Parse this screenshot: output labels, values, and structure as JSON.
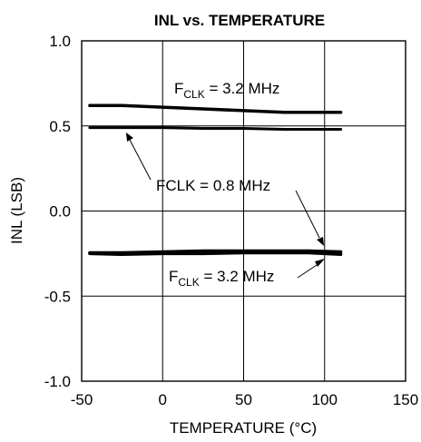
{
  "chart_data": {
    "type": "line",
    "title": "INL vs. TEMPERATURE",
    "xlabel": "TEMPERATURE (°C)",
    "ylabel": "INL (LSB)",
    "xlim": [
      -50,
      150
    ],
    "ylim": [
      -1.0,
      1.0
    ],
    "xticks": [
      -50,
      0,
      50,
      100,
      150
    ],
    "yticks": [
      1.0,
      0.5,
      0.0,
      -0.5,
      -1.0
    ],
    "xtick_labels": [
      "-50",
      "0",
      "50",
      "100",
      "150"
    ],
    "ytick_labels": [
      "1.0",
      "0.5",
      "0.0",
      "-0.5",
      "-1.0"
    ],
    "grid": true,
    "series": [
      {
        "x": [
          -45,
          -25,
          0,
          25,
          50,
          75,
          90,
          110
        ],
        "y": [
          0.62,
          0.62,
          0.61,
          0.6,
          0.59,
          0.58,
          0.58,
          0.58
        ],
        "width": 3.5
      },
      {
        "x": [
          -45,
          -25,
          0,
          25,
          50,
          75,
          90,
          110
        ],
        "y": [
          0.49,
          0.49,
          0.49,
          0.485,
          0.485,
          0.48,
          0.48,
          0.48
        ],
        "width": 3
      },
      {
        "x": [
          -45,
          -25,
          0,
          25,
          50,
          75,
          90,
          110
        ],
        "y": [
          -0.245,
          -0.245,
          -0.24,
          -0.235,
          -0.235,
          -0.235,
          -0.235,
          -0.24
        ],
        "width": 3.5
      },
      {
        "x": [
          -45,
          -25,
          0,
          25,
          50,
          75,
          90,
          110
        ],
        "y": [
          -0.25,
          -0.255,
          -0.25,
          -0.25,
          -0.245,
          -0.245,
          -0.245,
          -0.255
        ],
        "width": 3.5
      }
    ],
    "annotations": [
      {
        "id": "fclk-32-top",
        "main": "F",
        "sub": "CLK",
        "rest": " = 3.2 MHz"
      },
      {
        "id": "fclk-08",
        "main": "FCLK = 0.8 MHz",
        "sub": "",
        "rest": ""
      },
      {
        "id": "fclk-32-bottom",
        "main": "F",
        "sub": "CLK",
        "rest": " = 3.2 MHz"
      }
    ]
  }
}
